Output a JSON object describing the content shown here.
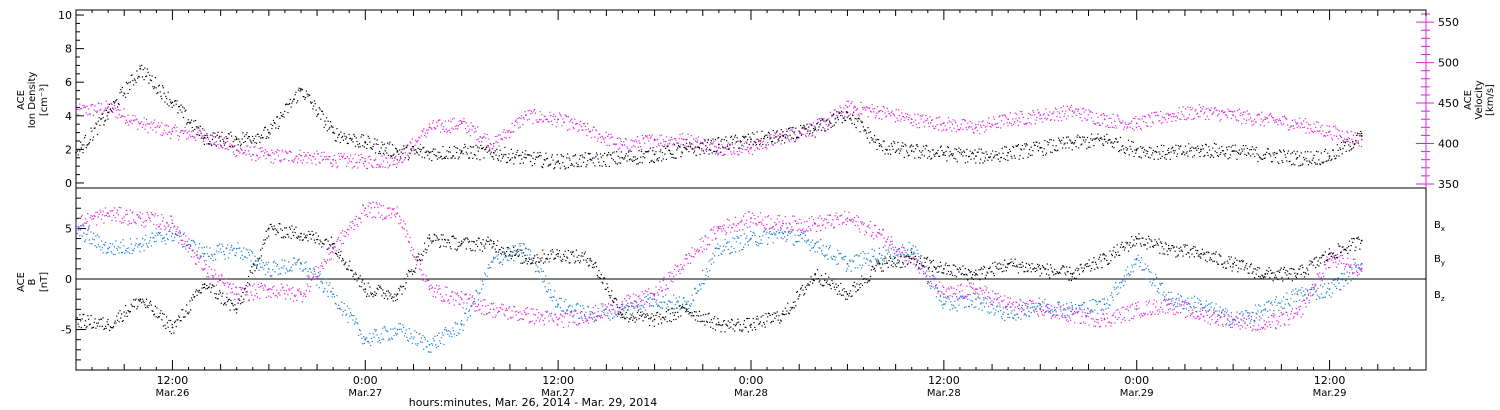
{
  "chart_data": [
    {
      "type": "scatter",
      "panel": "ion-density-velocity",
      "ylabel_left": [
        "ACE",
        "Ion Density",
        "[cm⁻³]"
      ],
      "ylabel_right": [
        "ACE",
        "Velocity",
        "[km/s]"
      ],
      "ylim_left": [
        -0.3,
        10.3
      ],
      "ylim_right": [
        345,
        565
      ],
      "yticks_left": [
        0,
        2,
        4,
        6,
        8,
        10
      ],
      "yticks_left_labels": [
        "0",
        "2",
        "4",
        "6",
        "8",
        "10"
      ],
      "yticks_right": [
        350,
        400,
        450,
        500,
        550
      ],
      "yticks_right_labels": [
        "350",
        "400",
        "450",
        "500",
        "550"
      ],
      "colors": {
        "density": "#000000",
        "velocity": "#e020e0"
      },
      "series": [
        {
          "axis": "left",
          "color": "#000000",
          "x_hours": [
            0,
            2,
            4,
            6,
            8,
            10,
            12,
            14,
            16,
            18,
            20,
            22,
            24,
            26,
            28,
            30,
            32,
            34,
            36,
            38,
            40,
            42,
            44,
            46,
            48,
            50,
            52,
            54,
            56,
            58,
            60,
            62,
            64,
            66,
            68,
            70,
            72,
            74,
            76,
            78,
            80
          ],
          "values": [
            1.8,
            4.2,
            6.8,
            4.8,
            2.7,
            2.6,
            3.0,
            5.6,
            3.0,
            2.4,
            1.9,
            1.8,
            1.9,
            1.8,
            1.5,
            1.3,
            1.4,
            1.5,
            1.7,
            2.0,
            2.3,
            2.6,
            2.8,
            3.2,
            4.2,
            2.2,
            1.9,
            1.8,
            1.6,
            1.8,
            2.1,
            2.4,
            2.6,
            2.0,
            1.8,
            2.0,
            1.9,
            1.7,
            1.5,
            1.6,
            2.8
          ]
        },
        {
          "axis": "right",
          "color": "#e020e0",
          "x_hours": [
            0,
            2,
            4,
            6,
            8,
            10,
            12,
            14,
            16,
            18,
            20,
            22,
            24,
            26,
            28,
            30,
            32,
            34,
            36,
            38,
            40,
            42,
            44,
            46,
            48,
            50,
            52,
            54,
            56,
            58,
            60,
            62,
            64,
            66,
            68,
            70,
            72,
            74,
            76,
            78,
            80
          ],
          "values": [
            440,
            445,
            425,
            415,
            410,
            392,
            385,
            385,
            380,
            378,
            380,
            420,
            425,
            400,
            435,
            430,
            415,
            398,
            405,
            405,
            395,
            395,
            410,
            420,
            445,
            440,
            430,
            425,
            420,
            430,
            435,
            440,
            430,
            425,
            435,
            440,
            435,
            430,
            425,
            415,
            405
          ]
        }
      ]
    },
    {
      "type": "scatter",
      "panel": "magnetic-field",
      "ylabel_left": [
        "ACE",
        "B",
        "[nT]"
      ],
      "ylim": [
        -9,
        9
      ],
      "yticks": [
        -5,
        0,
        5
      ],
      "yticks_labels": [
        "-5",
        "0",
        "5"
      ],
      "zero_line": true,
      "legend_position": "right",
      "series": [
        {
          "name": "Bx",
          "label_main": "B",
          "label_sub": "x",
          "color": "#000000",
          "x_hours": [
            0,
            2,
            4,
            6,
            8,
            10,
            12,
            14,
            16,
            18,
            20,
            22,
            24,
            26,
            28,
            30,
            32,
            34,
            36,
            38,
            40,
            42,
            44,
            46,
            48,
            50,
            52,
            54,
            56,
            58,
            60,
            62,
            64,
            66,
            68,
            70,
            72,
            74,
            76,
            78,
            80
          ],
          "values": [
            -4.0,
            -4.5,
            -2.0,
            -4.8,
            -0.5,
            -3.0,
            5.0,
            4.5,
            3.5,
            -1.0,
            -1.5,
            4.0,
            3.5,
            3.5,
            2.0,
            2.5,
            2.0,
            -3.5,
            -4.0,
            -3.0,
            -4.5,
            -4.5,
            -3.5,
            0.5,
            -1.5,
            1.5,
            2.0,
            1.0,
            0.5,
            1.5,
            1.0,
            0.5,
            2.0,
            4.0,
            3.0,
            2.5,
            1.5,
            0.5,
            0.5,
            2.5,
            3.8
          ]
        },
        {
          "name": "By",
          "label_main": "B",
          "label_sub": "y",
          "color": "#1a7fd0",
          "x_hours": [
            0,
            2,
            4,
            6,
            8,
            10,
            12,
            14,
            16,
            18,
            20,
            22,
            24,
            26,
            28,
            30,
            32,
            34,
            36,
            38,
            40,
            42,
            44,
            46,
            48,
            50,
            52,
            54,
            56,
            58,
            60,
            62,
            64,
            66,
            68,
            70,
            72,
            74,
            76,
            78,
            80
          ],
          "values": [
            5.0,
            3.0,
            3.5,
            4.5,
            2.5,
            3.0,
            1.0,
            1.5,
            -1.5,
            -6.0,
            -5.0,
            -6.5,
            -4.5,
            2.0,
            3.0,
            -2.5,
            -3.5,
            -3.0,
            -2.0,
            -2.5,
            3.0,
            4.0,
            4.5,
            3.5,
            1.5,
            2.5,
            3.0,
            -2.5,
            -2.0,
            -3.5,
            -2.5,
            -3.0,
            -2.5,
            2.0,
            -2.0,
            -2.5,
            -4.0,
            -3.0,
            -1.5,
            -1.0,
            1.5
          ]
        },
        {
          "name": "Bz",
          "label_main": "B",
          "label_sub": "z",
          "color": "#e020e0",
          "x_hours": [
            0,
            2,
            4,
            6,
            8,
            10,
            12,
            14,
            16,
            18,
            20,
            22,
            24,
            26,
            28,
            30,
            32,
            34,
            36,
            38,
            40,
            42,
            44,
            46,
            48,
            50,
            52,
            54,
            56,
            58,
            60,
            62,
            64,
            66,
            68,
            70,
            72,
            74,
            76,
            78,
            80
          ],
          "values": [
            5.5,
            6.5,
            6.0,
            5.5,
            1.0,
            -1.5,
            -1.0,
            -1.5,
            3.0,
            7.0,
            6.5,
            -1.0,
            -2.0,
            -3.0,
            -3.5,
            -4.0,
            -3.5,
            -2.5,
            -1.5,
            2.0,
            5.0,
            6.0,
            5.5,
            5.5,
            6.0,
            4.5,
            2.0,
            -1.5,
            -1.0,
            -2.5,
            -3.0,
            -3.5,
            -4.0,
            -3.0,
            -2.5,
            -3.5,
            -4.0,
            -4.5,
            -3.5,
            2.0,
            1.0
          ]
        }
      ]
    }
  ],
  "x_axis": {
    "xlim_hours": [
      0,
      84
    ],
    "major_ticks": [
      {
        "hours": 6,
        "time": "12:00",
        "date": "Mar.26"
      },
      {
        "hours": 18,
        "time": "0:00",
        "date": "Mar.27"
      },
      {
        "hours": 30,
        "time": "12:00",
        "date": "Mar.27"
      },
      {
        "hours": 42,
        "time": "0:00",
        "date": "Mar.28"
      },
      {
        "hours": 54,
        "time": "12:00",
        "date": "Mar.28"
      },
      {
        "hours": 66,
        "time": "0:00",
        "date": "Mar.29"
      },
      {
        "hours": 78,
        "time": "12:00",
        "date": "Mar.29"
      }
    ],
    "title": "hours:minutes, Mar. 26, 2014 - Mar. 29, 2014"
  }
}
